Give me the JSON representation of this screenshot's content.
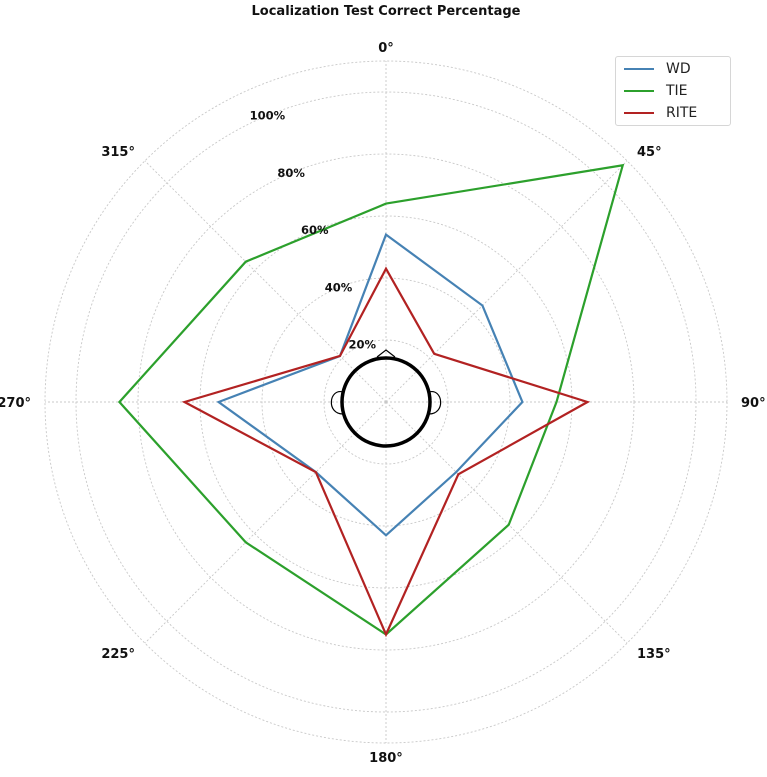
{
  "chart_data": {
    "type": "radar",
    "title": "Localization Test Correct Percentage",
    "angles": [
      "0°",
      "45°",
      "90°",
      "135°",
      "180°",
      "225°",
      "270°",
      "315°"
    ],
    "radial_ticks": [
      "20%",
      "40%",
      "60%",
      "80%",
      "100%"
    ],
    "radial_tick_values": [
      20,
      40,
      60,
      80,
      100
    ],
    "rlim": [
      0,
      110
    ],
    "grid": true,
    "legend_position": "top-right",
    "series": [
      {
        "name": "WD",
        "color": "#4682b4",
        "values": [
          54,
          44,
          44,
          32,
          43,
          32,
          54,
          21
        ]
      },
      {
        "name": "TIE",
        "color": "#2ca02c",
        "values": [
          64,
          108,
          55,
          56,
          75,
          64,
          86,
          64
        ]
      },
      {
        "name": "RITE",
        "color": "#b22222",
        "values": [
          43,
          22,
          65,
          33,
          75,
          32,
          65,
          21
        ]
      }
    ]
  }
}
